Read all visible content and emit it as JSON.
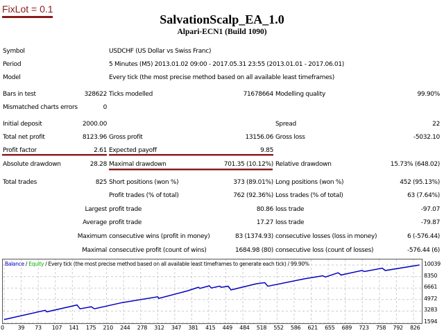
{
  "header": {
    "fixlot": "FixLot = 0.1",
    "title": "SalvationScalp_EA_1.0",
    "subtitle": "Alpari-ECN1 (Build 1090)"
  },
  "info": {
    "symbol_label": "Symbol",
    "symbol": "USDCHF (US Dollar vs Swiss Franc)",
    "period_label": "Period",
    "period": "5 Minutes (M5) 2013.01.02 09:00 - 2017.05.31 23:55 (2013.01.01 - 2017.06.01)",
    "model_label": "Model",
    "model": "Every tick (the most precise method based on all available least timeframes)",
    "bars_label": "Bars in test",
    "bars": "328622",
    "ticks_label": "Ticks modelled",
    "ticks": "71678664",
    "quality_label": "Modelling quality",
    "quality": "99.90%",
    "mismatch_label": "Mismatched charts errors",
    "mismatch": "0"
  },
  "stats": {
    "deposit_label": "Initial deposit",
    "deposit": "2000.00",
    "spread_label": "Spread",
    "spread": "22",
    "netprofit_label": "Total net profit",
    "netprofit": "8123.96",
    "grossprofit_label": "Gross profit",
    "grossprofit": "13156.06",
    "grossloss_label": "Gross loss",
    "grossloss": "-5032.10",
    "pf_label": "Profit factor",
    "pf": "2.61",
    "payoff_label": "Expected payoff",
    "payoff": "9.85",
    "absdd_label": "Absolute drawdown",
    "absdd": "28.28",
    "maxdd_label": "Maximal drawdown",
    "maxdd": "701.35 (10.12%)",
    "reldd_label": "Relative drawdown",
    "reldd": "15.73% (648.02)",
    "trades_label": "Total trades",
    "trades": "825",
    "short_label": "Short positions (won %)",
    "short": "373 (89.01%)",
    "long_label": "Long positions (won %)",
    "long": "452 (95.13%)",
    "ptrades_label": "Profit trades (% of total)",
    "ptrades": "762 (92.36%)",
    "ltrades_label": "Loss trades (% of total)",
    "ltrades": "63 (7.64%)",
    "largest_label": "Largest",
    "lpt_label": "profit trade",
    "lpt": "80.86",
    "llt_label": "loss trade",
    "llt": "-97.07",
    "average_label": "Average",
    "apt_label": "profit trade",
    "apt": "17.27",
    "alt_label": "loss trade",
    "alt": "-79.87",
    "maximum_label": "Maximum",
    "mcw_label": "consecutive wins (profit in money)",
    "mcw": "83 (1374.93)",
    "mcl_label": "consecutive losses (loss in money)",
    "mcl": "6 (-576.44)",
    "maximal_label": "Maximal",
    "mcp_label": "consecutive profit (count of wins)",
    "mcp": "1684.98 (80)",
    "mclo_label": "consecutive loss (count of losses)",
    "mclo": "-576.44 (6)"
  },
  "chart_data": {
    "type": "line",
    "legend": {
      "balance": "Balance",
      "sep1": " / ",
      "equity": "Equity",
      "rest": " / Every tick (the most precise method based on all available least timeframes to generate each tick) / 99.90%"
    },
    "x_ticks": [
      "0",
      "39",
      "73",
      "107",
      "141",
      "175",
      "210",
      "244",
      "278",
      "312",
      "347",
      "381",
      "415",
      "449",
      "484",
      "518",
      "552",
      "586",
      "621",
      "655",
      "689",
      "723",
      "758",
      "792",
      "826"
    ],
    "y_ticks": [
      "10039",
      "8350",
      "6661",
      "4972",
      "3283",
      "1594"
    ],
    "xlim": [
      0,
      840
    ],
    "ylim": [
      1594,
      10300
    ],
    "series": [
      {
        "name": "Balance",
        "color": "#0000c0",
        "points": [
          [
            0,
            2040
          ],
          [
            83,
            3390
          ],
          [
            86,
            3170
          ],
          [
            147,
            4180
          ],
          [
            153,
            3620
          ],
          [
            176,
            3910
          ],
          [
            182,
            3620
          ],
          [
            238,
            4520
          ],
          [
            310,
            5380
          ],
          [
            312,
            5150
          ],
          [
            368,
            6210
          ],
          [
            392,
            6770
          ],
          [
            395,
            6610
          ],
          [
            414,
            6990
          ],
          [
            418,
            6660
          ],
          [
            435,
            6950
          ],
          [
            438,
            6770
          ],
          [
            452,
            6930
          ],
          [
            458,
            6390
          ],
          [
            509,
            7290
          ],
          [
            526,
            7450
          ],
          [
            532,
            6930
          ],
          [
            606,
            8010
          ],
          [
            643,
            8460
          ],
          [
            648,
            8280
          ],
          [
            674,
            8900
          ],
          [
            680,
            8570
          ],
          [
            722,
            9240
          ],
          [
            727,
            9080
          ],
          [
            763,
            9580
          ],
          [
            769,
            9240
          ],
          [
            838,
            10039
          ]
        ]
      }
    ]
  }
}
